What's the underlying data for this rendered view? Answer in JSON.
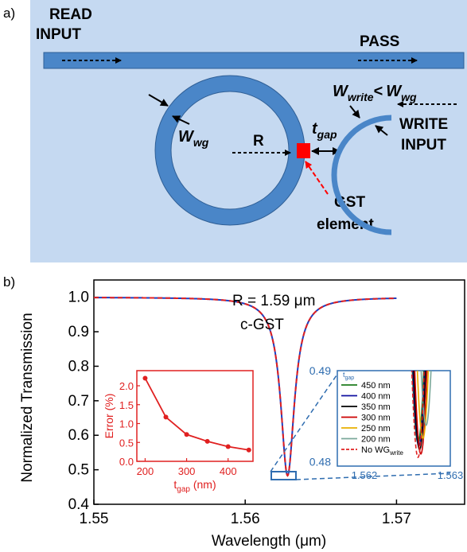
{
  "panel_a": {
    "label": "a)",
    "read_input": [
      "READ",
      "INPUT"
    ],
    "pass": "PASS",
    "w_wg_main": "W",
    "w_wg_sub": "wg",
    "r_label": "R",
    "tgap_main": "t",
    "tgap_sub": "gap",
    "wwrite_main": "W",
    "wwrite_sub": "write",
    "wwrite_lt": "<",
    "wwg_main": "W",
    "wwg_sub": "wg",
    "write_input": [
      "WRITE",
      "INPUT"
    ],
    "gst": [
      "GST",
      "element"
    ],
    "colors": {
      "background": "#c5d9f1",
      "waveguide": "#4a86c8",
      "gst": "#ff0000"
    }
  },
  "panel_b": {
    "label": "b)",
    "chart_data": [
      {
        "type": "line",
        "xlabel": "Wavelength (μm)",
        "ylabel": "Normalized Transmission",
        "xlim": [
          1.55,
          1.5745
        ],
        "ylim": [
          0.4,
          1.05
        ],
        "xticks": [
          1.55,
          1.56,
          1.57
        ],
        "xtick_labels": [
          "1.55",
          "1.56",
          "1.57"
        ],
        "yticks": [
          0.4,
          0.5,
          0.6,
          0.7,
          0.8,
          0.9,
          1.0
        ],
        "ytick_labels": [
          "0.4",
          "0.5",
          "0.6",
          "0.7",
          "0.8",
          "0.9",
          "1.0"
        ],
        "annotations": [
          "R = 1.59 μm",
          "c-GST"
        ],
        "resonance": {
          "center": 1.5628,
          "baseline": 1.0,
          "min": 0.483,
          "half_width": 0.00055,
          "x_start": 1.55,
          "x_end": 1.57
        },
        "series": [
          {
            "color": "#1f3fbf",
            "style": "solid"
          },
          {
            "color": "#e02020",
            "style": "dashed"
          }
        ]
      },
      {
        "type": "line",
        "title": "",
        "xlabel": "t_gap (nm)",
        "xlabel_main": "t",
        "xlabel_sub": "gap",
        "xlabel_unit": "(nm)",
        "ylabel": "Error (%)",
        "xlim": [
          180,
          460
        ],
        "ylim": [
          0.0,
          2.4
        ],
        "xticks": [
          200,
          300,
          400
        ],
        "xtick_labels": [
          "200",
          "300",
          "400"
        ],
        "yticks": [
          0.0,
          0.5,
          1.0,
          1.5,
          2.0
        ],
        "ytick_labels": [
          "0.0",
          "0.5",
          "1.0",
          "1.5",
          "2.0"
        ],
        "x": [
          200,
          250,
          300,
          350,
          400,
          450
        ],
        "values": [
          2.2,
          1.17,
          0.71,
          0.53,
          0.39,
          0.3
        ],
        "color": "#e02020"
      },
      {
        "type": "line",
        "title": "",
        "xlim": [
          1.5618,
          1.5632
        ],
        "ylim": [
          0.4795,
          0.4905
        ],
        "ytick_labels": [
          "0.49",
          "0.48"
        ],
        "xtick_labels": [
          "1.562",
          "1.563"
        ],
        "legend_title_main": "t",
        "legend_title_sub": "gap",
        "legend_last_main": "No WG",
        "legend_last_sub": "write",
        "series": [
          {
            "name": "450 nm",
            "color": "#1e7b1e",
            "min": 0.4822,
            "shift": 0.0
          },
          {
            "name": "400 nm",
            "color": "#1010a0",
            "min": 0.4818,
            "shift": 1e-05
          },
          {
            "name": "350 nm",
            "color": "#000000",
            "min": 0.4814,
            "shift": 2e-05
          },
          {
            "name": "300 nm",
            "color": "#cc0000",
            "min": 0.4809,
            "shift": 3.5e-05
          },
          {
            "name": "250 nm",
            "color": "#e8b000",
            "min": 0.4827,
            "shift": 6e-05
          },
          {
            "name": "200 nm",
            "color": "#7aa89a",
            "min": 0.4842,
            "shift": 0.0001
          },
          {
            "name": "No WG_write",
            "color": "#e02020",
            "min": 0.4805,
            "shift": 0.0,
            "style": "dashed"
          }
        ]
      }
    ]
  }
}
